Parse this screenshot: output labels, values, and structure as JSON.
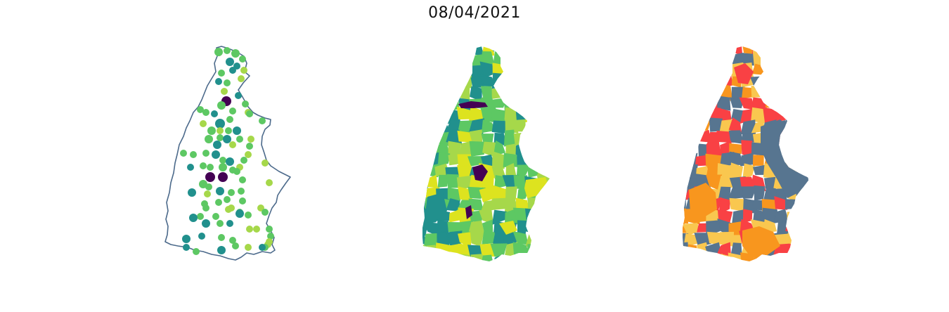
{
  "figure": {
    "title": "08/04/2021"
  },
  "colors": {
    "outline": "#4c6a8b",
    "viridis": [
      "#440154",
      "#3b528b",
      "#21908d",
      "#5dc863",
      "#a6d84a",
      "#dde31f"
    ],
    "category": [
      "#f94144",
      "#f8961e",
      "#f9c74f",
      "#577590"
    ]
  }
}
